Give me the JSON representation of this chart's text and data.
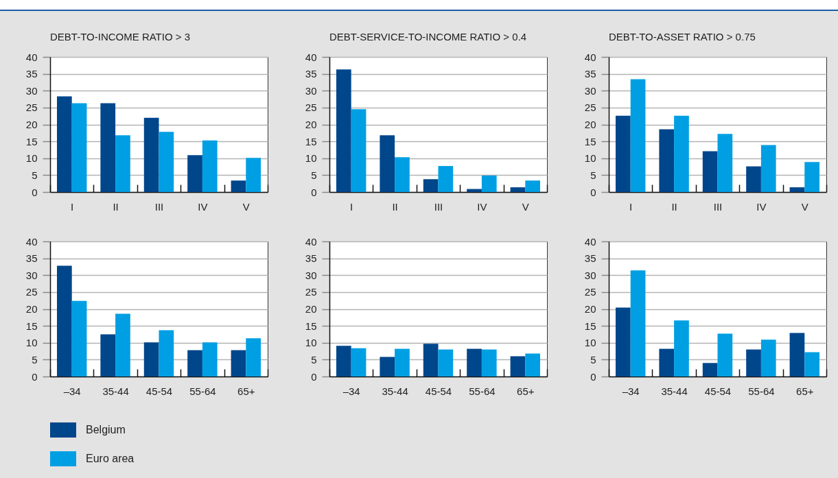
{
  "chart_data": [
    {
      "type": "bar",
      "title": "DEBT-TO-INCOME RATIO > 3",
      "categories": [
        "I",
        "II",
        "III",
        "IV",
        "V"
      ],
      "series": [
        {
          "color": "#00468b",
          "values": [
            28.3,
            26.3,
            22.0,
            10.9,
            3.4
          ]
        },
        {
          "color": "#009fe3",
          "values": [
            26.3,
            16.8,
            17.8,
            15.3,
            10.1
          ]
        }
      ],
      "ylim": [
        0,
        40
      ],
      "yticks": [
        0,
        5,
        10,
        15,
        20,
        25,
        30,
        35,
        40
      ],
      "grid": "y"
    },
    {
      "type": "bar",
      "title": "DEBT-SERVICE-TO-INCOME RATIO > 0.4",
      "categories": [
        "I",
        "II",
        "III",
        "IV",
        "V"
      ],
      "series": [
        {
          "color": "#00468b",
          "values": [
            36.3,
            16.8,
            3.8,
            0.9,
            1.4
          ]
        },
        {
          "color": "#009fe3",
          "values": [
            24.5,
            10.3,
            7.7,
            4.9,
            3.4
          ]
        }
      ],
      "ylim": [
        0,
        40
      ],
      "yticks": [
        0,
        5,
        10,
        15,
        20,
        25,
        30,
        35,
        40
      ],
      "grid": "y"
    },
    {
      "type": "bar",
      "title": "DEBT-TO-ASSET RATIO > 0.75",
      "categories": [
        "I",
        "II",
        "III",
        "IV",
        "V"
      ],
      "series": [
        {
          "color": "#00468b",
          "values": [
            22.6,
            18.6,
            12.1,
            7.6,
            1.4
          ]
        },
        {
          "color": "#009fe3",
          "values": [
            33.4,
            22.6,
            17.2,
            13.9,
            8.9
          ]
        }
      ],
      "ylim": [
        0,
        40
      ],
      "yticks": [
        0,
        5,
        10,
        15,
        20,
        25,
        30,
        35,
        40
      ],
      "grid": "y"
    },
    {
      "type": "bar",
      "categories": [
        "–34",
        "35-44",
        "45-54",
        "55-64",
        "65+"
      ],
      "series": [
        {
          "name": "Belgium",
          "color": "#00468b",
          "values": [
            32.8,
            12.5,
            10.1,
            7.8,
            7.8
          ]
        },
        {
          "name": "Euro area",
          "color": "#009fe3",
          "values": [
            22.4,
            18.6,
            13.7,
            10.1,
            11.3
          ]
        }
      ],
      "ylim": [
        0,
        40
      ],
      "yticks": [
        0,
        5,
        10,
        15,
        20,
        25,
        30,
        35,
        40
      ],
      "grid": "y",
      "legend": "bottom"
    },
    {
      "type": "bar",
      "categories": [
        "–34",
        "35-44",
        "45-54",
        "55-64",
        "65+"
      ],
      "series": [
        {
          "color": "#00468b",
          "values": [
            9.1,
            5.8,
            9.7,
            8.2,
            6.0
          ]
        },
        {
          "color": "#009fe3",
          "values": [
            8.4,
            8.2,
            8.0,
            8.0,
            6.8
          ]
        }
      ],
      "ylim": [
        0,
        40
      ],
      "yticks": [
        0,
        5,
        10,
        15,
        20,
        25,
        30,
        35,
        40
      ],
      "grid": "y"
    },
    {
      "type": "bar",
      "categories": [
        "–34",
        "35-44",
        "45-54",
        "55-64",
        "65+"
      ],
      "series": [
        {
          "color": "#00468b",
          "values": [
            20.4,
            8.2,
            4.0,
            8.0,
            12.9
          ]
        },
        {
          "color": "#009fe3",
          "values": [
            31.4,
            16.6,
            12.7,
            10.9,
            7.2
          ]
        }
      ],
      "ylim": [
        0,
        40
      ],
      "yticks": [
        0,
        5,
        10,
        15,
        20,
        25,
        30,
        35,
        40
      ],
      "grid": "y"
    }
  ]
}
